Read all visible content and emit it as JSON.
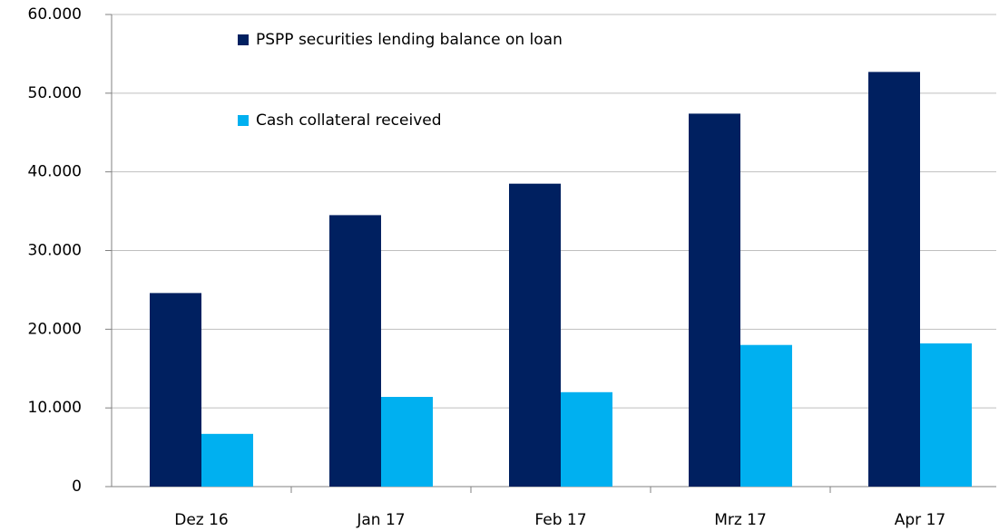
{
  "chart_data": {
    "type": "bar",
    "categories": [
      "Dez 16",
      "Jan 17",
      "Feb 17",
      "Mrz 17",
      "Apr 17"
    ],
    "series": [
      {
        "name": "PSPP securities lending balance on loan",
        "color": "#002060",
        "values": [
          24600,
          34500,
          38500,
          47400,
          52700
        ]
      },
      {
        "name": "Cash collateral received",
        "color": "#00b0f0",
        "values": [
          6700,
          11400,
          12000,
          18000,
          18200
        ]
      }
    ],
    "ylim": [
      0,
      60000
    ],
    "yticks": [
      0,
      {
        "value": 10000,
        "label": "10.000"
      },
      {
        "value": 20000,
        "label": "20.000"
      },
      {
        "value": 30000,
        "label": "30.000"
      },
      {
        "value": 40000,
        "label": "40.000"
      },
      {
        "value": 50000,
        "label": "50.000"
      },
      {
        "value": 60000,
        "label": "60.000"
      }
    ],
    "grid": true,
    "legend": "upper left"
  }
}
